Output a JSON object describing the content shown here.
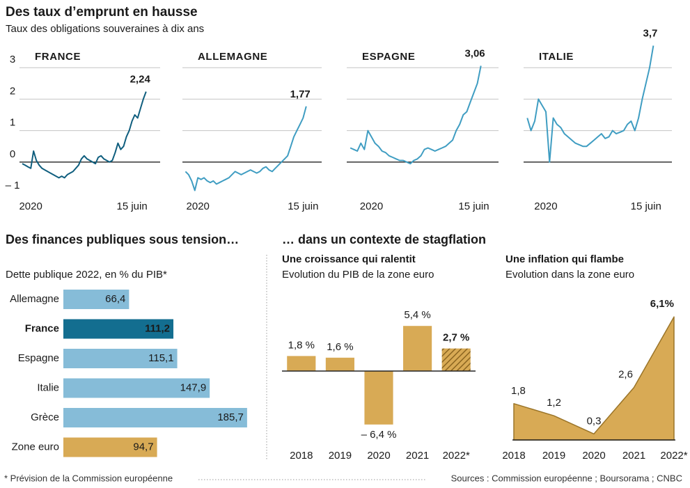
{
  "header": {
    "title": "Des taux d’emprunt en hausse",
    "subtitle": "Taux des obligations souveraines à dix ans"
  },
  "sections": {
    "left": "Des finances publiques sous tension…",
    "right": "… dans un contexte de stagflation"
  },
  "footer": {
    "note": "* Prévision de la Commission européenne",
    "sources": "Sources : Commission européenne ; Boursorama ; CNBC"
  },
  "chart_data": [
    {
      "type": "line",
      "title": "FRANCE",
      "color": "#0f5e7e",
      "values": [
        -0.05,
        -0.1,
        -0.15,
        -0.2,
        0.35,
        0.05,
        -0.1,
        -0.2,
        -0.25,
        -0.3,
        -0.35,
        -0.4,
        -0.45,
        -0.5,
        -0.45,
        -0.5,
        -0.4,
        -0.35,
        -0.3,
        -0.2,
        -0.1,
        0.1,
        0.2,
        0.1,
        0.05,
        0,
        -0.05,
        0.15,
        0.2,
        0.1,
        0.05,
        0,
        0.05,
        0.3,
        0.6,
        0.4,
        0.5,
        0.8,
        1.0,
        1.3,
        1.5,
        1.4,
        1.7,
        2.0,
        2.24
      ],
      "value_labels": [
        null,
        null,
        null,
        null,
        null,
        null,
        null,
        null,
        null,
        null,
        null,
        null,
        null,
        null,
        null,
        null,
        null,
        null,
        null,
        null,
        null,
        null,
        null,
        null,
        null,
        null,
        null,
        null,
        null,
        null,
        null,
        null,
        null,
        null,
        null,
        null,
        null,
        null,
        null,
        null,
        null,
        null,
        null,
        null,
        "2,24"
      ],
      "xlim": [
        -1,
        49
      ],
      "xticks": [
        {
          "value": 3,
          "label": "2020"
        },
        {
          "value": 39,
          "label": "15 juin"
        }
      ],
      "ylim": [
        -1,
        4
      ],
      "yticks": [
        3,
        2,
        1,
        0,
        {
          "value": -1,
          "label": "– 1"
        }
      ],
      "ytick_labels": true
    },
    {
      "type": "line",
      "title": "ALLEMAGNE",
      "color": "#3f9dc2",
      "values": [
        -0.3,
        -0.4,
        -0.6,
        -0.9,
        -0.5,
        -0.55,
        -0.5,
        -0.6,
        -0.65,
        -0.6,
        -0.7,
        -0.65,
        -0.6,
        -0.55,
        -0.5,
        -0.4,
        -0.3,
        -0.35,
        -0.4,
        -0.35,
        -0.3,
        -0.25,
        -0.3,
        -0.35,
        -0.3,
        -0.2,
        -0.15,
        -0.25,
        -0.3,
        -0.2,
        -0.1,
        0,
        0.1,
        0.2,
        0.5,
        0.8,
        1.0,
        1.2,
        1.4,
        1.77
      ],
      "value_labels": [
        null,
        null,
        null,
        null,
        null,
        null,
        null,
        null,
        null,
        null,
        null,
        null,
        null,
        null,
        null,
        null,
        null,
        null,
        null,
        null,
        null,
        null,
        null,
        null,
        null,
        null,
        null,
        null,
        null,
        null,
        null,
        null,
        null,
        null,
        null,
        null,
        null,
        null,
        null,
        "1,77"
      ],
      "xlim": [
        -1,
        44
      ],
      "xticks": [
        {
          "value": 4,
          "label": "2020"
        },
        {
          "value": 38,
          "label": "15 juin"
        }
      ],
      "ylim": [
        -1,
        4
      ],
      "yticks": [
        3,
        2,
        1,
        0,
        -1
      ],
      "ytick_labels": false
    },
    {
      "type": "line",
      "title": "ESPAGNE",
      "color": "#3f9dc2",
      "values": [
        0.45,
        0.4,
        0.35,
        0.6,
        0.4,
        1.0,
        0.8,
        0.6,
        0.5,
        0.35,
        0.3,
        0.2,
        0.15,
        0.1,
        0.05,
        0.05,
        0.0,
        -0.05,
        0.05,
        0.1,
        0.2,
        0.4,
        0.45,
        0.4,
        0.35,
        0.4,
        0.45,
        0.5,
        0.6,
        0.7,
        1.0,
        1.2,
        1.5,
        1.6,
        1.9,
        2.2,
        2.5,
        3.06
      ],
      "value_labels": [
        null,
        null,
        null,
        null,
        null,
        null,
        null,
        null,
        null,
        null,
        null,
        null,
        null,
        null,
        null,
        null,
        null,
        null,
        null,
        null,
        null,
        null,
        null,
        null,
        null,
        null,
        null,
        null,
        null,
        null,
        null,
        null,
        null,
        null,
        null,
        null,
        null,
        "3,06"
      ],
      "xlim": [
        -1,
        42
      ],
      "xticks": [
        {
          "value": 6,
          "label": "2020"
        },
        {
          "value": 35,
          "label": "15 juin"
        }
      ],
      "ylim": [
        -1,
        4
      ],
      "yticks": [
        3,
        2,
        1,
        0,
        -1
      ],
      "ytick_labels": false
    },
    {
      "type": "line",
      "title": "ITALIE",
      "color": "#3f9dc2",
      "values": [
        1.4,
        1.0,
        1.3,
        2.0,
        1.8,
        1.6,
        0.0,
        1.4,
        1.2,
        1.1,
        0.9,
        0.8,
        0.7,
        0.6,
        0.55,
        0.5,
        0.5,
        0.6,
        0.7,
        0.8,
        0.9,
        0.75,
        0.8,
        1.0,
        0.9,
        0.95,
        1.0,
        1.2,
        1.3,
        1.0,
        1.4,
        2.0,
        2.5,
        3.0,
        3.7
      ],
      "value_labels": [
        null,
        null,
        null,
        null,
        null,
        null,
        null,
        null,
        null,
        null,
        null,
        null,
        null,
        null,
        null,
        null,
        null,
        null,
        null,
        null,
        null,
        null,
        null,
        null,
        null,
        null,
        null,
        null,
        null,
        null,
        null,
        null,
        null,
        null,
        "3,7"
      ],
      "xlim": [
        -1,
        39
      ],
      "xticks": [
        {
          "value": 5,
          "label": "2020"
        },
        {
          "value": 32,
          "label": "15 juin"
        }
      ],
      "ylim": [
        -1,
        4
      ],
      "yticks": [
        3,
        2,
        1,
        0,
        -1
      ],
      "ytick_labels": false
    },
    {
      "type": "barh",
      "title": "Dette publique 2022, en % du PIB*",
      "categories": [
        "Allemagne",
        "France",
        "Espagne",
        "Italie",
        "Grèce",
        "Zone euro"
      ],
      "values": [
        66.4,
        111.2,
        115.1,
        147.9,
        185.7,
        94.7
      ],
      "value_labels": [
        "66,4",
        "111,2",
        "115,1",
        "147,9",
        "185,7",
        "94,7"
      ],
      "colors": [
        "#86bcd8",
        "#136e90",
        "#86bcd8",
        "#86bcd8",
        "#86bcd8",
        "#d8aa55"
      ],
      "bold": [
        false,
        true,
        false,
        false,
        false,
        false
      ],
      "xlim": [
        0,
        190
      ]
    },
    {
      "type": "bar",
      "title": "Une croissance qui ralentit",
      "subtitle": "Evolution du PIB de la zone euro",
      "categories": [
        "2018",
        "2019",
        "2020",
        "2021",
        "2022*"
      ],
      "values": [
        1.8,
        1.6,
        -6.4,
        5.4,
        2.7
      ],
      "value_labels": [
        "1,8 %",
        "1,6 %",
        "– 6,4 %",
        "5,4 %",
        "2,7 %"
      ],
      "color": "#d8aa55",
      "hatched": [
        false,
        false,
        false,
        false,
        true
      ],
      "bold": [
        false,
        false,
        false,
        false,
        true
      ],
      "ylim": [
        -7,
        7
      ]
    },
    {
      "type": "area",
      "title": "Une inflation qui flambe",
      "subtitle": "Evolution dans la zone euro",
      "categories": [
        "2018",
        "2019",
        "2020",
        "2021",
        "2022*"
      ],
      "values": [
        1.8,
        1.2,
        0.3,
        2.6,
        6.1
      ],
      "value_labels": [
        "1,8",
        "1,2",
        "0,3",
        "2,6",
        "6,1%"
      ],
      "color": "#d8aa55",
      "bold": [
        false,
        false,
        false,
        false,
        true
      ],
      "ylim": [
        0,
        6.5
      ]
    }
  ]
}
